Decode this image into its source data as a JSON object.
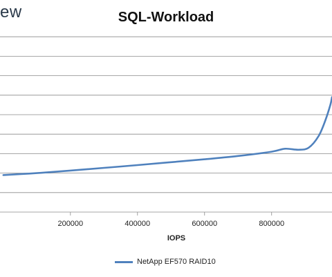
{
  "brand": {
    "text": "ew"
  },
  "chart_data": {
    "type": "line",
    "title": "SQL-Workload",
    "xlabel": "IOPS",
    "ylabel": "",
    "xlim": [
      -10000,
      980000
    ],
    "ylim": [
      0,
      10
    ],
    "x_ticks": [
      200000,
      400000,
      600000,
      800000
    ],
    "x_tick_labels": [
      "200000",
      "400000",
      "600000",
      "800000"
    ],
    "y_gridlines": [
      1,
      2,
      3,
      4,
      5,
      6,
      7,
      8,
      9
    ],
    "grid": true,
    "legend_position": "bottom",
    "series": [
      {
        "name": "NetApp EF570 RAID10",
        "color": "#4f81bd",
        "x": [
          0,
          100000,
          200000,
          300000,
          400000,
          500000,
          600000,
          700000,
          800000,
          840000,
          880000,
          910000,
          940000,
          960000,
          975000,
          980000
        ],
        "y": [
          1.9,
          2.0,
          2.13,
          2.27,
          2.41,
          2.56,
          2.71,
          2.88,
          3.1,
          3.25,
          3.2,
          3.3,
          3.9,
          4.7,
          5.5,
          5.9
        ]
      }
    ]
  }
}
